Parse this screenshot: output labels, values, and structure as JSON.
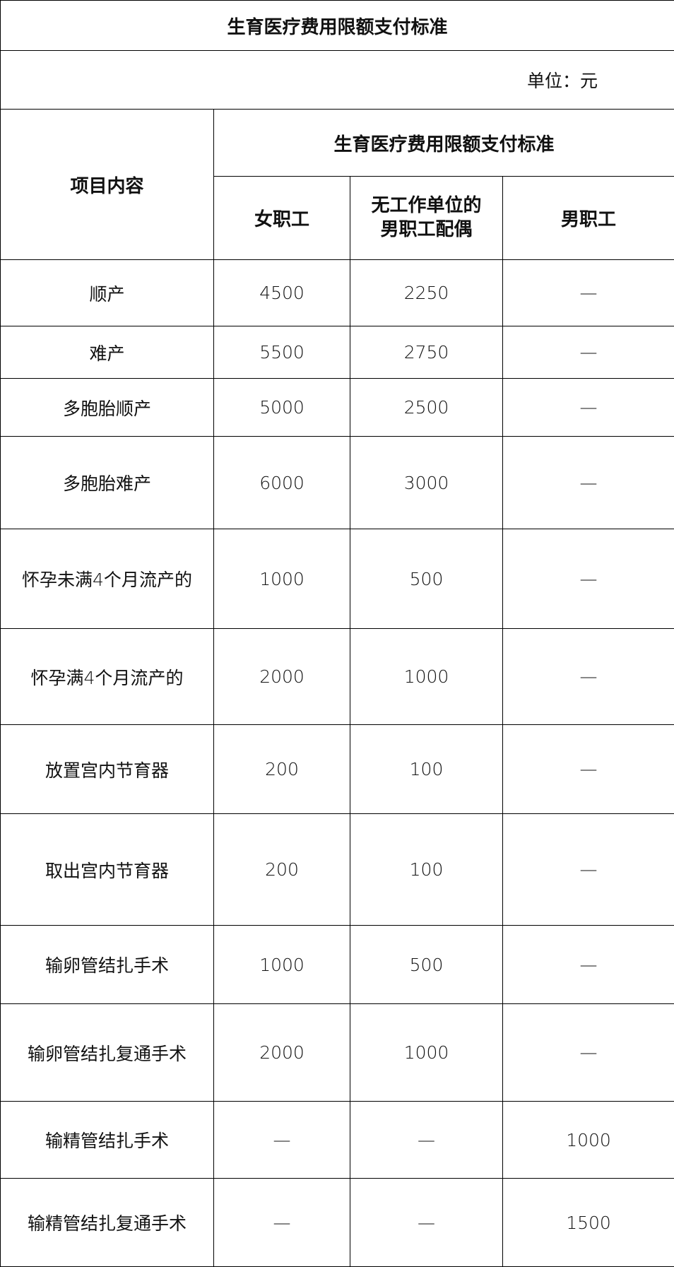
{
  "title": "生育医疗费用限额支付标准",
  "unit": "单位：元",
  "header": {
    "item": "项目内容",
    "group": "生育医疗费用限额支付标准",
    "columns": [
      "女职工",
      "无工作单位的\n男职工配偶",
      "男职工"
    ]
  },
  "rows": [
    {
      "item": "顺产",
      "values": [
        "4500",
        "2250",
        "—"
      ]
    },
    {
      "item": "难产",
      "values": [
        "5500",
        "2750",
        "—"
      ]
    },
    {
      "item": "多胞胎顺产",
      "values": [
        "5000",
        "2500",
        "—"
      ]
    },
    {
      "item": "多胞胎难产",
      "values": [
        "6000",
        "3000",
        "—"
      ]
    },
    {
      "item": "怀孕未满4个月流产的",
      "values": [
        "1000",
        "500",
        "—"
      ]
    },
    {
      "item": "怀孕满4个月流产的",
      "values": [
        "2000",
        "1000",
        "—"
      ]
    },
    {
      "item": "放置宫内节育器",
      "values": [
        "200",
        "100",
        "—"
      ]
    },
    {
      "item": "取出宫内节育器",
      "values": [
        "200",
        "100",
        "—"
      ]
    },
    {
      "item": "输卵管结扎手术",
      "values": [
        "1000",
        "500",
        "—"
      ]
    },
    {
      "item": "输卵管结扎复通手术",
      "values": [
        "2000",
        "1000",
        "—"
      ]
    },
    {
      "item": "输精管结扎手术",
      "values": [
        "—",
        "—",
        "1000"
      ]
    },
    {
      "item": "输精管结扎复通手术",
      "values": [
        "—",
        "—",
        "1500"
      ]
    }
  ]
}
